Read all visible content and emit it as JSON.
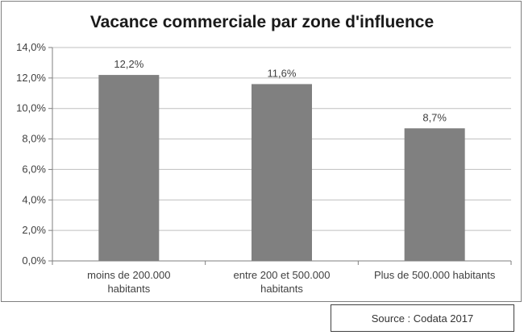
{
  "chart_data": {
    "type": "bar",
    "title": "Vacance commerciale par zone d'influence",
    "categories": [
      [
        "moins de 200.000",
        "habitants"
      ],
      [
        "entre 200 et 500.000",
        "habitants"
      ],
      [
        "Plus de 500.000 habitants"
      ]
    ],
    "values": [
      12.2,
      11.6,
      8.7
    ],
    "value_labels": [
      "12,2%",
      "11,6%",
      "8,7%"
    ],
    "ylim": [
      0,
      14
    ],
    "yticks": [
      0,
      2,
      4,
      6,
      8,
      10,
      12,
      14
    ],
    "ytick_labels": [
      "0,0%",
      "2,0%",
      "4,0%",
      "6,0%",
      "8,0%",
      "10,0%",
      "12,0%",
      "14,0%"
    ],
    "grid": true,
    "bar_color": "#808080",
    "grid_color": "#bfbfbf"
  },
  "source": "Source : Codata 2017"
}
